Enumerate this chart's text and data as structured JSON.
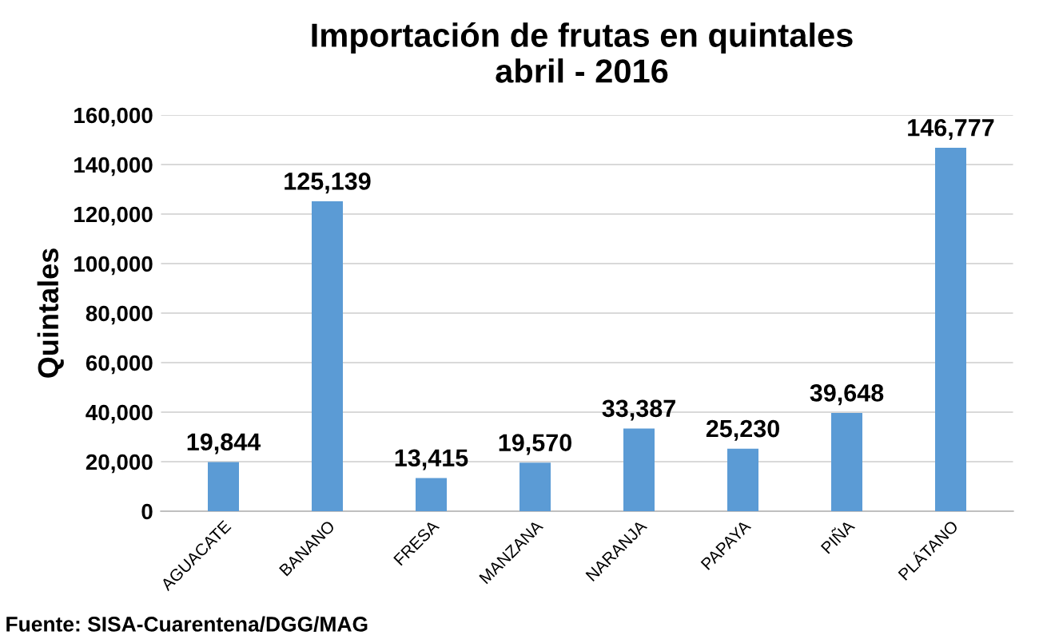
{
  "chart_data": {
    "type": "bar",
    "title": "Importación de frutas en quintales\nabril - 2016",
    "ylabel": "Quintales",
    "categories": [
      "AGUACATE",
      "BANANO",
      "FRESA",
      "MANZANA",
      "NARANJA",
      "PAPAYA",
      "PIÑA",
      "PLÁTANO"
    ],
    "values": [
      19844,
      125139,
      13415,
      19570,
      33387,
      25230,
      39648,
      146777
    ],
    "value_labels": [
      "19,844",
      "125,139",
      "13,415",
      "19,570",
      "33,387",
      "25,230",
      "39,648",
      "146,777"
    ],
    "color": "#5b9bd5",
    "ylim": [
      0,
      160000
    ],
    "yticks": [
      0,
      {
        "value": 20000,
        "label": "20,000"
      },
      {
        "value": 40000,
        "label": "40,000"
      },
      {
        "value": 60000,
        "label": "60,000"
      },
      {
        "value": 80000,
        "label": "80,000"
      },
      {
        "value": 100000,
        "label": "100,000"
      },
      {
        "value": 120000,
        "label": "120,000"
      },
      {
        "value": 140000,
        "label": "140,000"
      },
      {
        "value": 160000,
        "label": "160,000"
      }
    ],
    "grid": "y",
    "annotations": [
      "Fuente: SISA-Cuarentena/DGG/MAG"
    ]
  }
}
